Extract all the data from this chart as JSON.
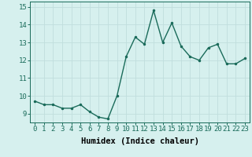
{
  "x": [
    0,
    1,
    2,
    3,
    4,
    5,
    6,
    7,
    8,
    9,
    10,
    11,
    12,
    13,
    14,
    15,
    16,
    17,
    18,
    19,
    20,
    21,
    22,
    23
  ],
  "y": [
    9.7,
    9.5,
    9.5,
    9.3,
    9.3,
    9.5,
    9.1,
    8.8,
    8.7,
    10.0,
    12.2,
    13.3,
    12.9,
    14.8,
    13.0,
    14.1,
    12.8,
    12.2,
    12.0,
    12.7,
    12.9,
    11.8,
    11.8,
    12.1
  ],
  "line_color": "#1a6b5a",
  "marker": ".",
  "bg_color": "#d6f0ee",
  "grid_color": "#c0dedd",
  "xlabel": "Humidex (Indice chaleur)",
  "ylim": [
    8.5,
    15.3
  ],
  "xlim": [
    -0.5,
    23.5
  ],
  "yticks": [
    9,
    10,
    11,
    12,
    13,
    14,
    15
  ],
  "xticks": [
    0,
    1,
    2,
    3,
    4,
    5,
    6,
    7,
    8,
    9,
    10,
    11,
    12,
    13,
    14,
    15,
    16,
    17,
    18,
    19,
    20,
    21,
    22,
    23
  ],
  "xlabel_fontsize": 7.5,
  "tick_fontsize": 6.5,
  "line_width": 1.0,
  "marker_size": 3.0
}
